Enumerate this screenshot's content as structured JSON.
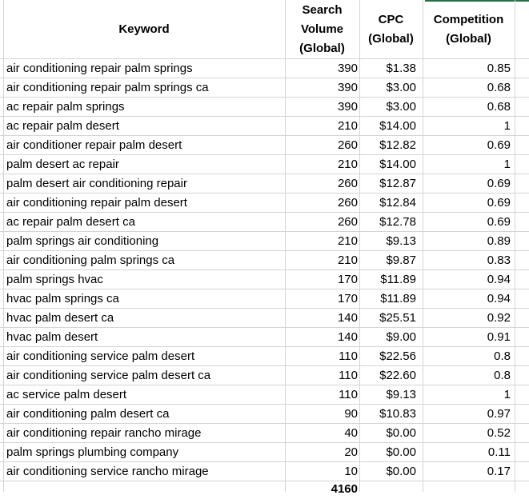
{
  "headers": {
    "keyword": "Keyword",
    "volume": "Search\nVolume\n(Global)",
    "cpc": "CPC\n(Global)",
    "competition": "Competition\n(Global)"
  },
  "rows": [
    {
      "keyword": "air conditioning repair palm springs",
      "volume": "390",
      "cpc": "$1.38",
      "competition": "0.85"
    },
    {
      "keyword": "air conditioning repair palm springs ca",
      "volume": "390",
      "cpc": "$3.00",
      "competition": "0.68"
    },
    {
      "keyword": "ac repair palm springs",
      "volume": "390",
      "cpc": "$3.00",
      "competition": "0.68"
    },
    {
      "keyword": "ac repair palm desert",
      "volume": "210",
      "cpc": "$14.00",
      "competition": "1"
    },
    {
      "keyword": "air conditioner repair palm desert",
      "volume": "260",
      "cpc": "$12.82",
      "competition": "0.69"
    },
    {
      "keyword": "palm desert ac repair",
      "volume": "210",
      "cpc": "$14.00",
      "competition": "1"
    },
    {
      "keyword": "palm desert air conditioning repair",
      "volume": "260",
      "cpc": "$12.87",
      "competition": "0.69"
    },
    {
      "keyword": "air conditioning repair palm desert",
      "volume": "260",
      "cpc": "$12.84",
      "competition": "0.69"
    },
    {
      "keyword": "ac repair palm desert ca",
      "volume": "260",
      "cpc": "$12.78",
      "competition": "0.69"
    },
    {
      "keyword": "palm springs air conditioning",
      "volume": "210",
      "cpc": "$9.13",
      "competition": "0.89"
    },
    {
      "keyword": "air conditioning palm springs ca",
      "volume": "210",
      "cpc": "$9.87",
      "competition": "0.83"
    },
    {
      "keyword": "palm springs hvac",
      "volume": "170",
      "cpc": "$11.89",
      "competition": "0.94"
    },
    {
      "keyword": "hvac palm springs ca",
      "volume": "170",
      "cpc": "$11.89",
      "competition": "0.94"
    },
    {
      "keyword": "hvac palm desert ca",
      "volume": "140",
      "cpc": "$25.51",
      "competition": "0.92"
    },
    {
      "keyword": "hvac palm desert",
      "volume": "140",
      "cpc": "$9.00",
      "competition": "0.91"
    },
    {
      "keyword": "air conditioning service palm desert",
      "volume": "110",
      "cpc": "$22.56",
      "competition": "0.8"
    },
    {
      "keyword": "air conditioning service palm desert ca",
      "volume": "110",
      "cpc": "$22.60",
      "competition": "0.8"
    },
    {
      "keyword": "ac service palm desert",
      "volume": "110",
      "cpc": "$9.13",
      "competition": "1"
    },
    {
      "keyword": "air conditioning palm desert ca",
      "volume": "90",
      "cpc": "$10.83",
      "competition": "0.97"
    },
    {
      "keyword": "air conditioning repair rancho mirage",
      "volume": "40",
      "cpc": "$0.00",
      "competition": "0.52"
    },
    {
      "keyword": "palm springs plumbing company",
      "volume": "20",
      "cpc": "$0.00",
      "competition": "0.11"
    },
    {
      "keyword": "air conditioning service rancho mirage",
      "volume": "10",
      "cpc": "$0.00",
      "competition": "0.17"
    }
  ],
  "total_volume": "4160",
  "colors": {
    "gridline": "#d4d4d4",
    "accent": "#217346"
  }
}
